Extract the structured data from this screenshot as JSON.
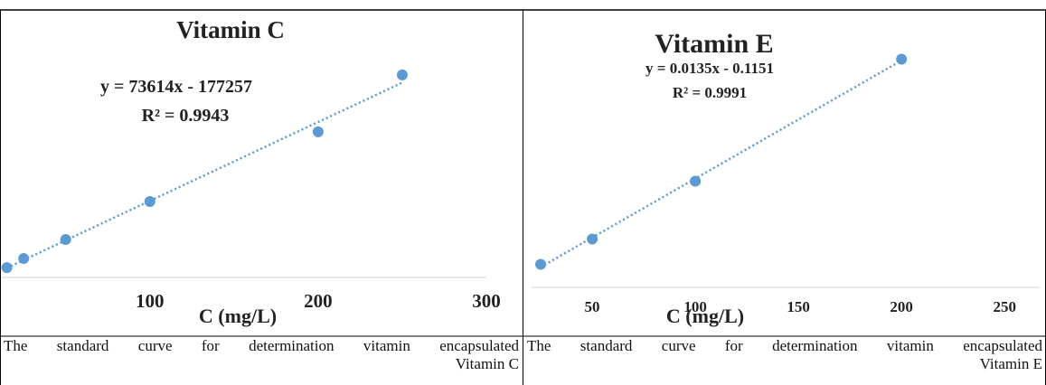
{
  "chart_data": [
    {
      "type": "scatter",
      "title": "Vitamin C",
      "equation": "y = 73614x - 177257",
      "r_squared": "R² = 0.9943",
      "x_label": "C (mg/L)",
      "x": [
        15,
        25,
        50,
        100,
        200,
        250
      ],
      "values": [
        -580000,
        210000,
        1870000,
        5180000,
        11250000,
        16220000
      ],
      "color": "#5b9bd5",
      "xlim": [
        12,
        300
      ],
      "ylim": [
        -1440000,
        21800000
      ],
      "xticks": [
        100,
        200,
        300
      ],
      "trendline": true,
      "caption": "The standard curve for determination vitamin encapsulated"
    },
    {
      "type": "scatter",
      "title": "Vitamin E",
      "equation": "y = 0.0135x - 0.1151",
      "r_squared": "R² = 0.9991",
      "x_label": "C (mg/L)",
      "x": [
        25,
        50,
        100,
        200
      ],
      "values": [
        0.31,
        0.59,
        1.23,
        2.58
      ],
      "color": "#5b9bd5",
      "xlim": [
        20.6,
        267
      ],
      "ylim": [
        0.055,
        3.115
      ],
      "xticks": [
        50,
        100,
        150,
        200,
        250
      ],
      "trendline": true,
      "caption": "The standard curve for determination vitamin encapsulated"
    }
  ]
}
